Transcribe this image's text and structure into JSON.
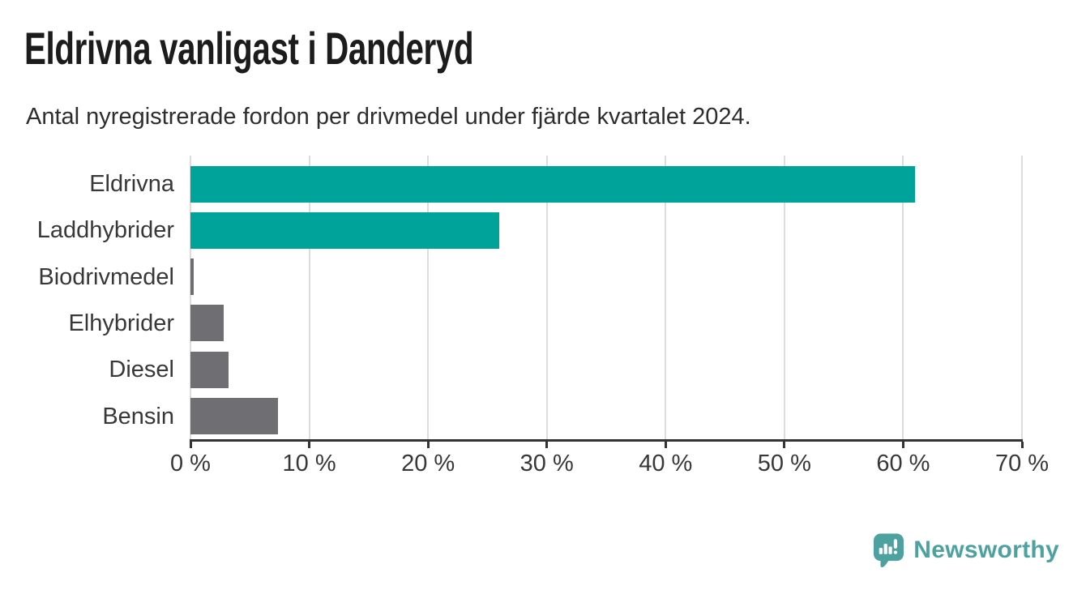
{
  "header": {
    "title": "Eldrivna vanligast i Danderyd",
    "subtitle": "Antal nyregistrerade fordon per drivmedel under fjärde kvartalet 2024."
  },
  "chart_data": {
    "type": "bar",
    "orientation": "horizontal",
    "title": "Eldrivna vanligast i Danderyd",
    "subtitle": "Antal nyregistrerade fordon per drivmedel under fjärde kvartalet 2024.",
    "categories": [
      "Eldrivna",
      "Laddhybrider",
      "Biodrivmedel",
      "Elhybrider",
      "Diesel",
      "Bensin"
    ],
    "values": [
      61,
      26,
      0.3,
      2.8,
      3.2,
      7.4
    ],
    "unit": "%",
    "xlim": [
      0,
      70
    ],
    "x_ticks": [
      0,
      10,
      20,
      30,
      40,
      50,
      60,
      70
    ],
    "x_tick_labels": [
      "0 %",
      "10 %",
      "20 %",
      "30 %",
      "40 %",
      "50 %",
      "60 %",
      "70 %"
    ],
    "bar_colors": [
      "#00a39a",
      "#00a39a",
      "#6e6e73",
      "#6e6e73",
      "#6e6e73",
      "#6e6e73"
    ],
    "grid": true,
    "legend": false
  },
  "colors": {
    "accent_teal": "#00a39a",
    "neutral_gray": "#6e6e73",
    "gridline": "#dcdcdc",
    "axis": "#333333",
    "text": "#303030",
    "logo_teal": "#4da2a0"
  },
  "footer": {
    "brand": "Newsworthy",
    "logo_icon": "newsworthy-pin-icon"
  }
}
